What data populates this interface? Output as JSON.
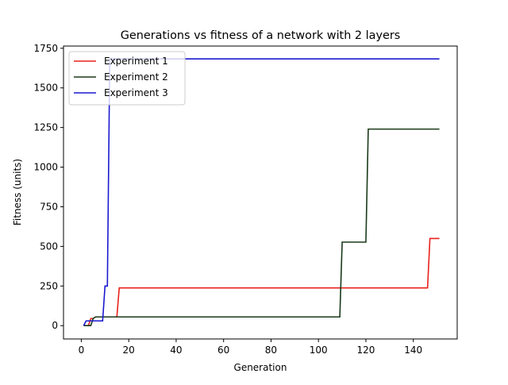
{
  "chart_data": {
    "type": "line",
    "title": "Generations vs fitness of a network with 2 layers",
    "xlabel": "Generation",
    "ylabel": "Fitness (units)",
    "xlim": [
      -7.5,
      158.5
    ],
    "ylim": [
      -84,
      1764
    ],
    "xticks": [
      0,
      20,
      40,
      60,
      80,
      100,
      120,
      140
    ],
    "yticks": [
      0,
      250,
      500,
      750,
      1000,
      1250,
      1500,
      1750
    ],
    "grid": false,
    "legend_position": "top-left",
    "series": [
      {
        "name": "Experiment 1",
        "color": "#e8221b",
        "x": [
          1,
          3,
          4,
          5,
          6,
          15,
          16,
          146,
          147,
          151
        ],
        "y": [
          0,
          0,
          45,
          45,
          55,
          55,
          238,
          238,
          550,
          550
        ]
      },
      {
        "name": "Experiment 2",
        "color": "#1a3a1a",
        "x": [
          1,
          4,
          5,
          6,
          109,
          110,
          120,
          121,
          151
        ],
        "y": [
          0,
          0,
          45,
          55,
          55,
          527,
          527,
          1240,
          1240
        ]
      },
      {
        "name": "Experiment 3",
        "color": "#1a1ad0",
        "x": [
          1,
          2,
          9,
          10,
          11,
          12,
          151
        ],
        "y": [
          0,
          30,
          30,
          250,
          250,
          1683,
          1683
        ]
      }
    ]
  }
}
